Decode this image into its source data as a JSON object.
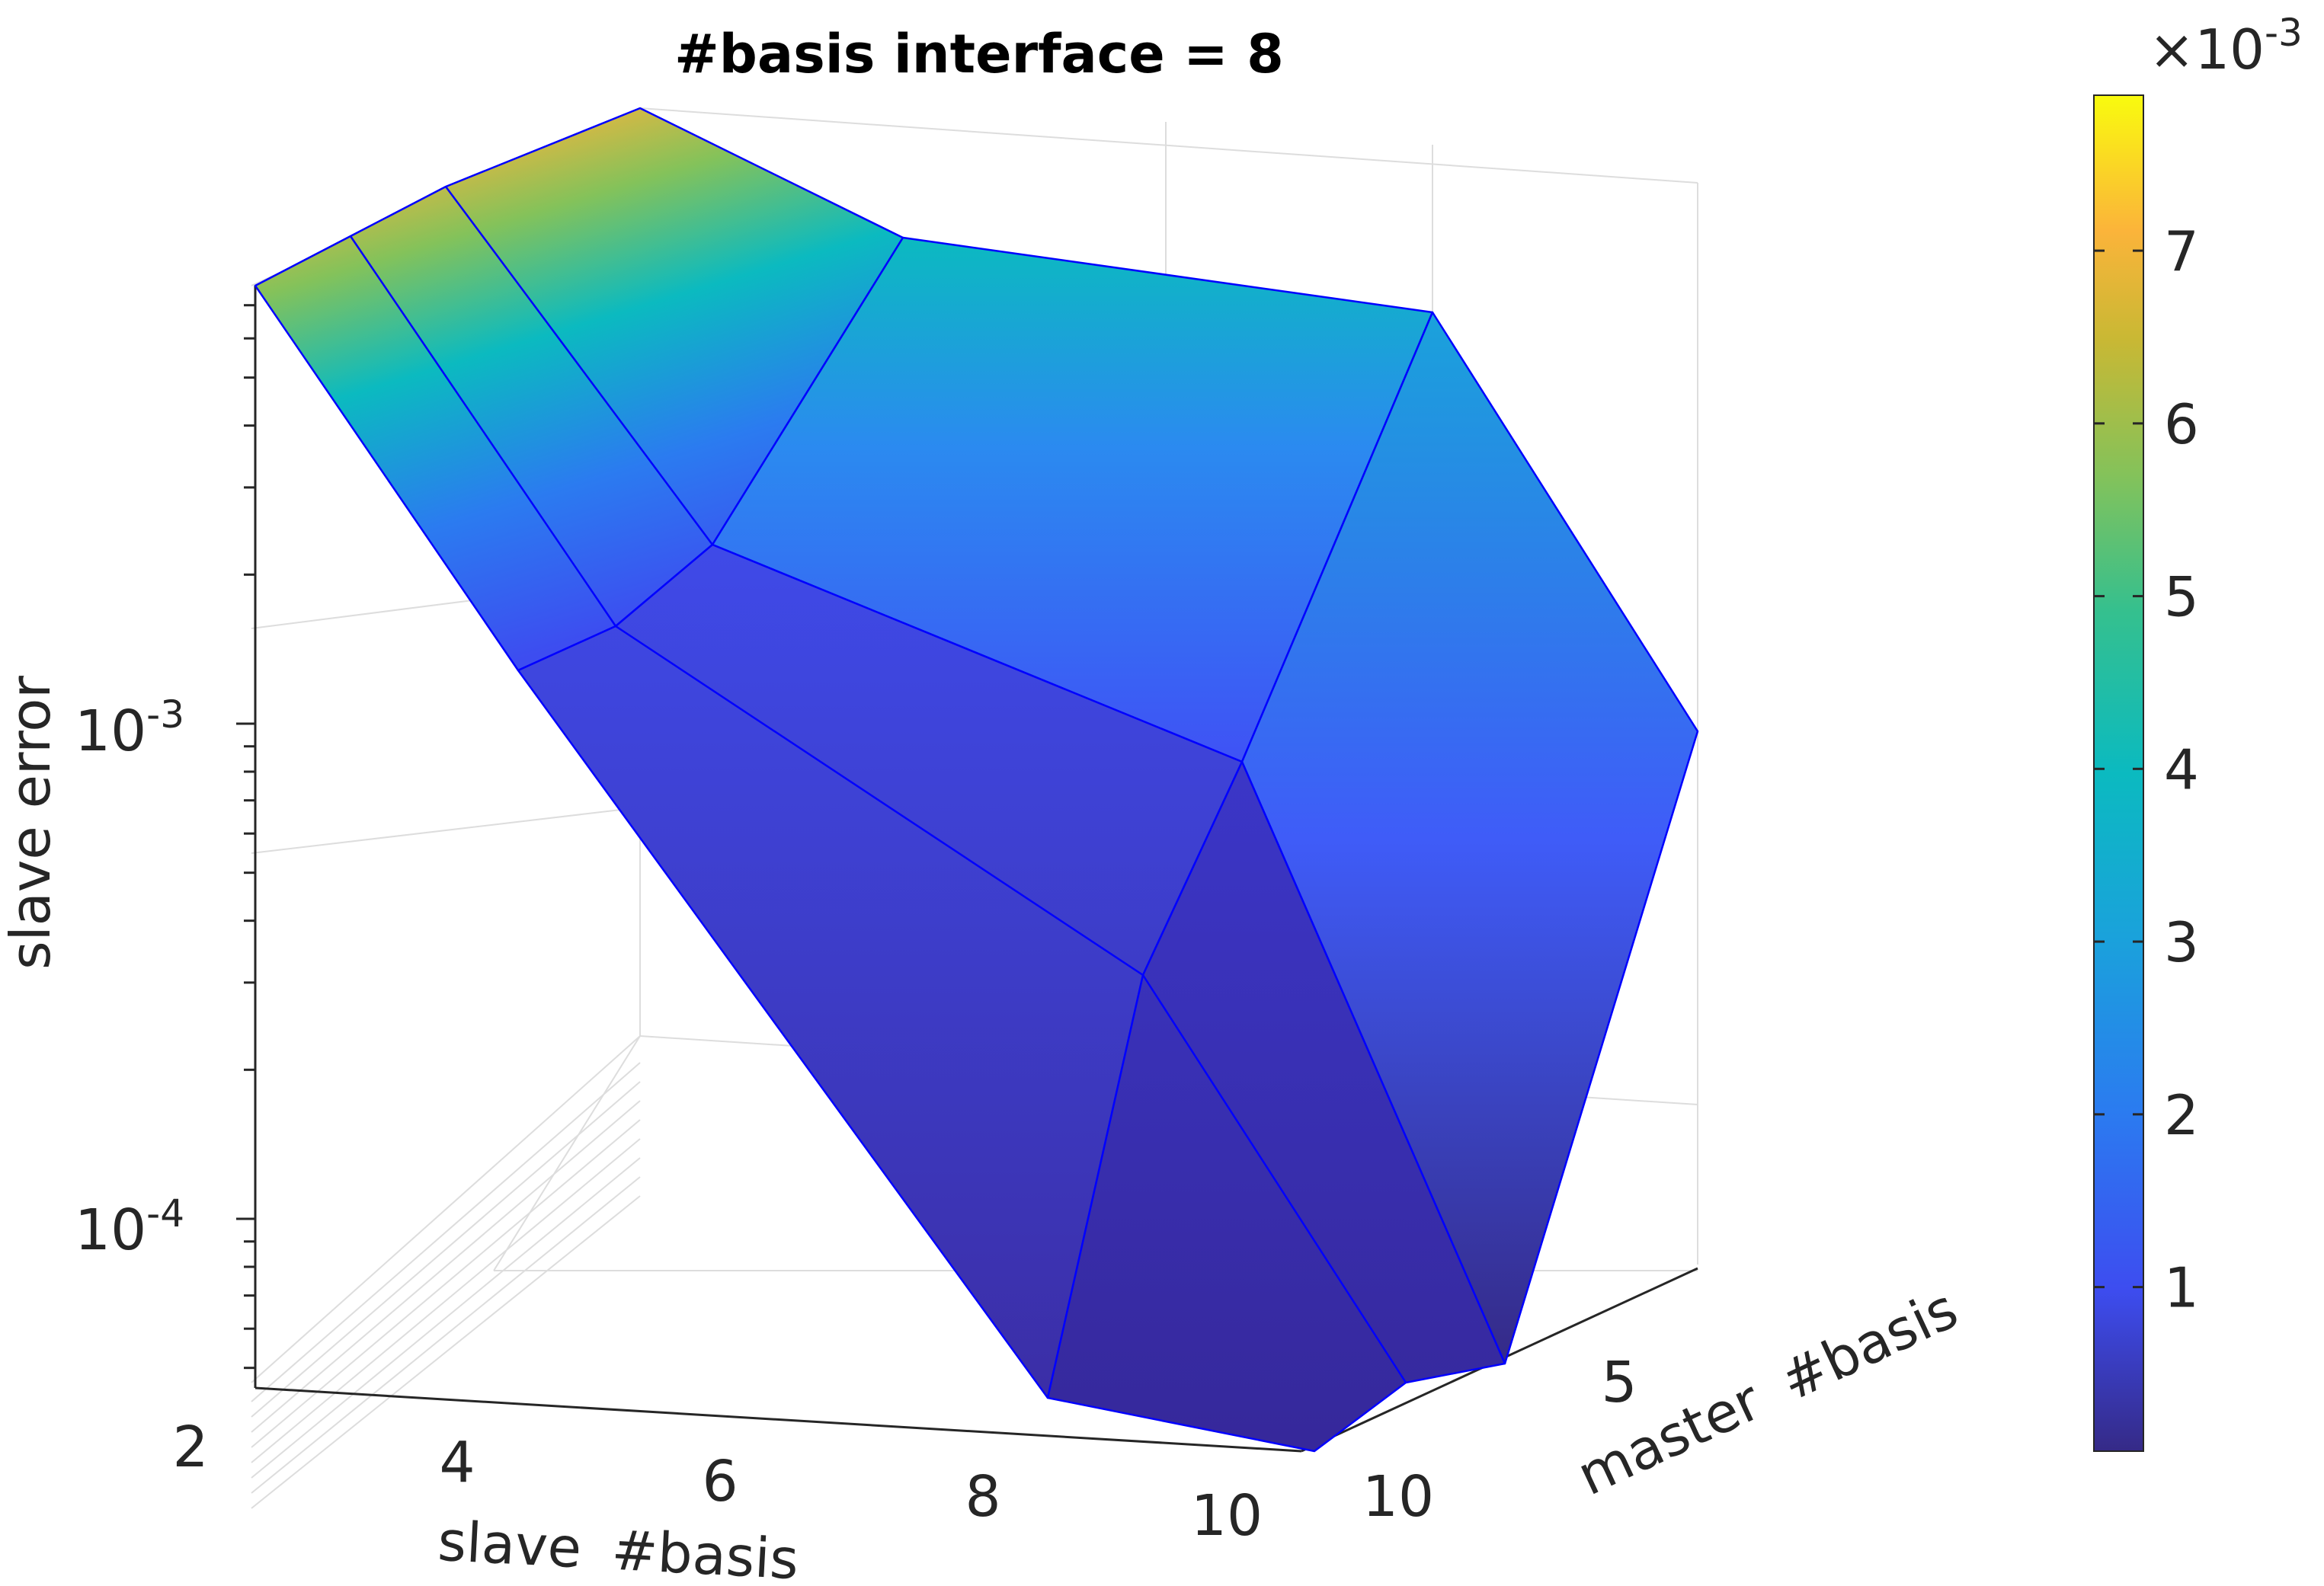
{
  "chart_data": {
    "type": "surface",
    "title": "#basis interface = 8",
    "zlabel": "slave error",
    "x_label": {
      "word1": "slave",
      "word2": "#basis"
    },
    "y_label": {
      "word1": "master",
      "word2": "#basis"
    },
    "x_ticks": [
      "2",
      "4",
      "6",
      "8",
      "10"
    ],
    "y_ticks": [
      "5",
      "10"
    ],
    "z_ticks": [
      {
        "base": "10",
        "exp": "-3",
        "value": 0.001
      },
      {
        "base": "10",
        "exp": "-4",
        "value": 0.0001
      }
    ],
    "z_scale": "log",
    "colormap": "parula",
    "edge_color": "#0000ff",
    "colorbar": {
      "ticks": [
        "1",
        "2",
        "3",
        "4",
        "5",
        "6",
        "7"
      ],
      "exponent_prefix": "×10",
      "exponent": "-3",
      "range": [
        5e-05,
        0.0079
      ]
    },
    "surface_points": [
      {
        "x": 2,
        "y": 2,
        "z": 0.0079
      },
      {
        "x": 3,
        "y": 2,
        "z": 0.0078
      },
      {
        "x": 4,
        "y": 2,
        "z": 0.0077
      },
      {
        "x": 6,
        "y": 2,
        "z": 0.0078
      },
      {
        "x": 8,
        "y": 2,
        "z": 0.0032
      },
      {
        "x": 10,
        "y": 2,
        "z": 0.003
      },
      {
        "x": 10,
        "y": 4,
        "z": 0.0017
      },
      {
        "x": 10,
        "y": 8,
        "z": 8e-05
      },
      {
        "x": 10,
        "y": 10,
        "z": 5e-05
      },
      {
        "x": 8,
        "y": 10,
        "z": 5e-05
      },
      {
        "x": 6,
        "y": 10,
        "z": 0.0001
      },
      {
        "x": 4,
        "y": 10,
        "z": 0.0005
      },
      {
        "x": 2,
        "y": 10,
        "z": 0.0026
      },
      {
        "x": 3,
        "y": 10,
        "z": 0.0011
      },
      {
        "x": 4,
        "y": 6,
        "z": 0.0017
      },
      {
        "x": 6,
        "y": 6,
        "z": 0.0006
      },
      {
        "x": 8,
        "y": 6,
        "z": 0.0003
      },
      {
        "x": 8,
        "y": 8,
        "z": 0.00015
      }
    ]
  }
}
